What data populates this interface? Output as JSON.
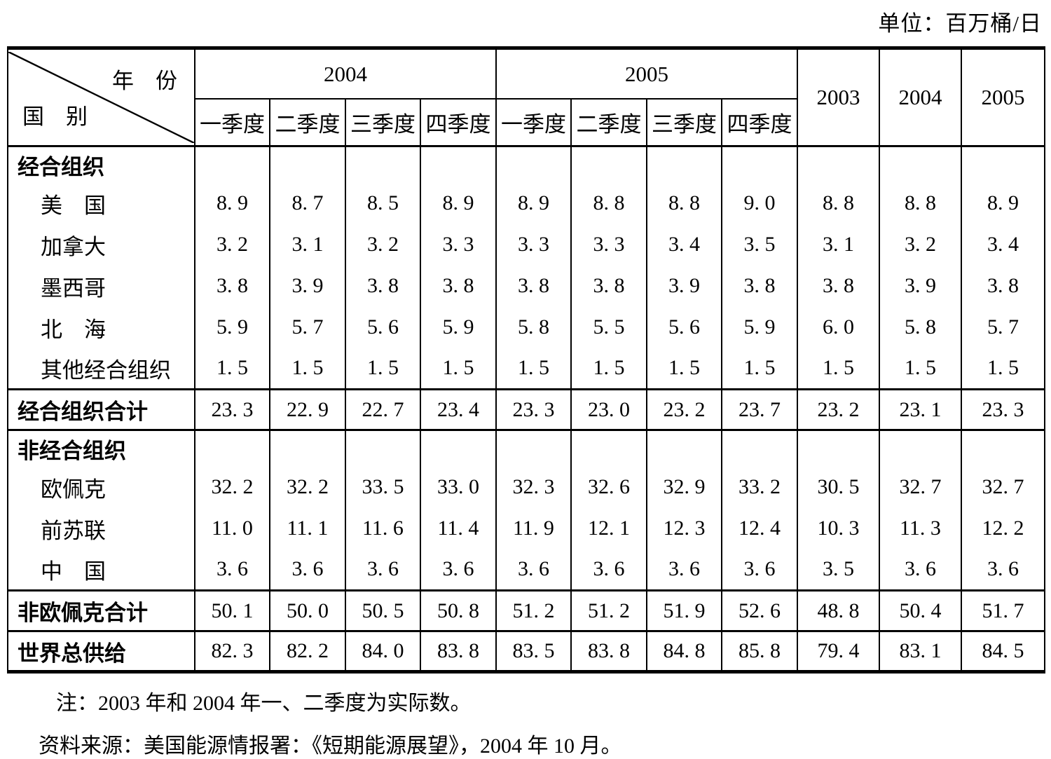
{
  "unit_label": "单位：百万桶/日",
  "table": {
    "corner": {
      "top": "年　份",
      "bottom": "国　别"
    },
    "year_groups": [
      {
        "label": "2004",
        "quarters": [
          "一季度",
          "二季度",
          "三季度",
          "四季度"
        ]
      },
      {
        "label": "2005",
        "quarters": [
          "一季度",
          "二季度",
          "三季度",
          "四季度"
        ]
      }
    ],
    "annual_columns": [
      "2003",
      "2004",
      "2005"
    ],
    "rows": [
      {
        "type": "section",
        "label": "经合组织",
        "cells": [
          "",
          "",
          "",
          "",
          "",
          "",
          "",
          "",
          "",
          "",
          ""
        ]
      },
      {
        "type": "country",
        "label": "美　国",
        "cells": [
          "8. 9",
          "8. 7",
          "8. 5",
          "8. 9",
          "8. 9",
          "8. 8",
          "8. 8",
          "9. 0",
          "8. 8",
          "8. 8",
          "8. 9"
        ]
      },
      {
        "type": "country",
        "label": "加拿大",
        "cells": [
          "3. 2",
          "3. 1",
          "3. 2",
          "3. 3",
          "3. 3",
          "3. 3",
          "3. 4",
          "3. 5",
          "3. 1",
          "3. 2",
          "3. 4"
        ]
      },
      {
        "type": "country",
        "label": "墨西哥",
        "cells": [
          "3. 8",
          "3. 9",
          "3. 8",
          "3. 8",
          "3. 8",
          "3. 8",
          "3. 9",
          "3. 8",
          "3. 8",
          "3. 9",
          "3. 8"
        ]
      },
      {
        "type": "country",
        "label": "北　海",
        "cells": [
          "5. 9",
          "5. 7",
          "5. 6",
          "5. 9",
          "5. 8",
          "5. 5",
          "5. 6",
          "5. 9",
          "6. 0",
          "5. 8",
          "5. 7"
        ]
      },
      {
        "type": "country",
        "label": "其他经合组织",
        "cells": [
          "1. 5",
          "1. 5",
          "1. 5",
          "1. 5",
          "1. 5",
          "1. 5",
          "1. 5",
          "1. 5",
          "1. 5",
          "1. 5",
          "1. 5"
        ]
      },
      {
        "type": "total",
        "label": "经合组织合计",
        "cells": [
          "23. 3",
          "22. 9",
          "22. 7",
          "23. 4",
          "23. 3",
          "23. 0",
          "23. 2",
          "23. 7",
          "23. 2",
          "23. 1",
          "23. 3"
        ]
      },
      {
        "type": "section",
        "label": "非经合组织",
        "cells": [
          "",
          "",
          "",
          "",
          "",
          "",
          "",
          "",
          "",
          "",
          ""
        ]
      },
      {
        "type": "country",
        "label": "欧佩克",
        "cells": [
          "32. 2",
          "32. 2",
          "33. 5",
          "33. 0",
          "32. 3",
          "32. 6",
          "32. 9",
          "33. 2",
          "30. 5",
          "32. 7",
          "32. 7"
        ]
      },
      {
        "type": "country",
        "label": "前苏联",
        "cells": [
          "11. 0",
          "11. 1",
          "11. 6",
          "11. 4",
          "11. 9",
          "12. 1",
          "12. 3",
          "12. 4",
          "10. 3",
          "11. 3",
          "12. 2"
        ]
      },
      {
        "type": "country",
        "label": "中　国",
        "cells": [
          "3. 6",
          "3. 6",
          "3. 6",
          "3. 6",
          "3. 6",
          "3. 6",
          "3. 6",
          "3. 6",
          "3. 5",
          "3. 6",
          "3. 6"
        ]
      },
      {
        "type": "total",
        "label": "非欧佩克合计",
        "cells": [
          "50. 1",
          "50. 0",
          "50. 5",
          "50. 8",
          "51. 2",
          "51. 2",
          "51. 9",
          "52. 6",
          "48. 8",
          "50. 4",
          "51. 7"
        ]
      },
      {
        "type": "total",
        "label": "世界总供给",
        "cells": [
          "82. 3",
          "82. 2",
          "84. 0",
          "83. 8",
          "83. 5",
          "83. 8",
          "84. 8",
          "85. 8",
          "79. 4",
          "83. 1",
          "84. 5"
        ]
      }
    ]
  },
  "notes": [
    "注：2003 年和 2004 年一、二季度为实际数。",
    "资料来源：美国能源情报署：《短期能源展望》，2004 年 10 月。"
  ]
}
